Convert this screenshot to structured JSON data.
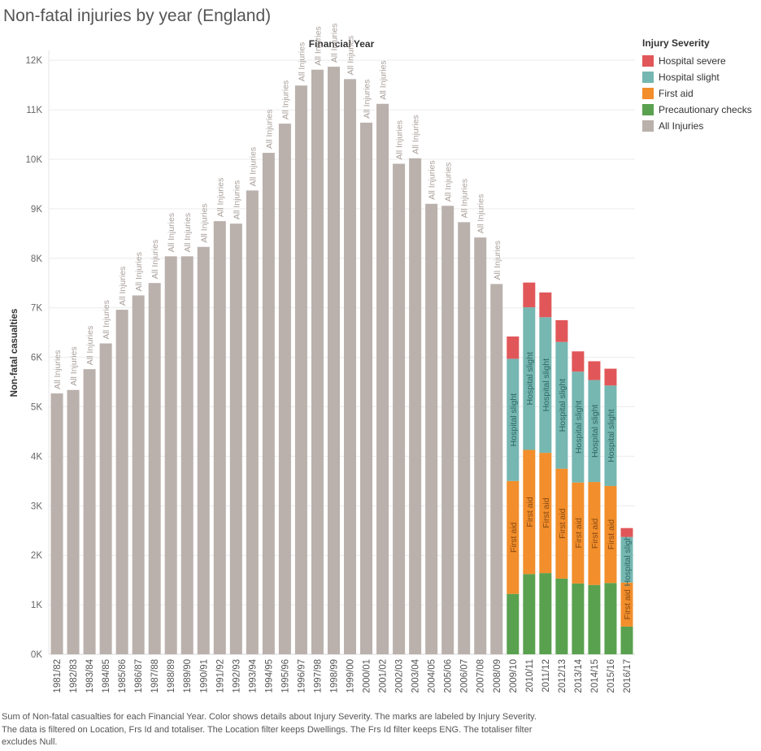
{
  "title": "Non-fatal injuries by year (England)",
  "column_header": "Financial Year",
  "legend": {
    "title": "Injury Severity",
    "items": [
      {
        "label": "Hospital severe",
        "color": "#e15759"
      },
      {
        "label": "Hospital slight",
        "color": "#76b7b2"
      },
      {
        "label": "First aid",
        "color": "#f28e2b"
      },
      {
        "label": "Precautionary checks",
        "color": "#59a14f"
      },
      {
        "label": "All Injuries",
        "color": "#bab0ac"
      }
    ]
  },
  "caption": {
    "line1": "Sum of Non-fatal casualties for each Financial Year.  Color shows details about Injury Severity.  The marks are labeled by Injury Severity.",
    "line2": "The data is filtered on Location, Frs Id and totaliser. The Location filter keeps Dwellings. The Frs Id filter keeps ENG. The totaliser filter",
    "line3": "excludes Null."
  },
  "chart_data": {
    "type": "bar",
    "stacked": true,
    "ylabel": "Non-fatal casualties",
    "xlabel": "Financial Year",
    "ylim": [
      0,
      12200
    ],
    "yticks": [
      "0K",
      "1K",
      "2K",
      "3K",
      "4K",
      "5K",
      "6K",
      "7K",
      "8K",
      "9K",
      "10K",
      "11K",
      "12K"
    ],
    "grid": "horizontal",
    "legend_position": "right",
    "categories": [
      "1981/82",
      "1982/83",
      "1983/84",
      "1984/85",
      "1985/86",
      "1986/87",
      "1987/88",
      "1988/89",
      "1989/90",
      "1990/91",
      "1991/92",
      "1992/93",
      "1993/94",
      "1994/95",
      "1995/96",
      "1996/97",
      "1997/98",
      "1998/99",
      "1999/00",
      "2000/01",
      "2001/02",
      "2002/03",
      "2003/04",
      "2004/05",
      "2005/06",
      "2006/07",
      "2007/08",
      "2008/09",
      "2009/10",
      "2010/11",
      "2011/12",
      "2012/13",
      "2013/14",
      "2014/15",
      "2015/16",
      "2016/17"
    ],
    "series": [
      {
        "name": "Precautionary checks",
        "color": "#59a14f",
        "label": "",
        "values": [
          null,
          null,
          null,
          null,
          null,
          null,
          null,
          null,
          null,
          null,
          null,
          null,
          null,
          null,
          null,
          null,
          null,
          null,
          null,
          null,
          null,
          null,
          null,
          null,
          null,
          null,
          null,
          null,
          1220,
          1620,
          1640,
          1530,
          1430,
          1400,
          1440,
          560
        ]
      },
      {
        "name": "First aid",
        "color": "#f28e2b",
        "label": "First aid",
        "values": [
          null,
          null,
          null,
          null,
          null,
          null,
          null,
          null,
          null,
          null,
          null,
          null,
          null,
          null,
          null,
          null,
          null,
          null,
          null,
          null,
          null,
          null,
          null,
          null,
          null,
          null,
          null,
          null,
          2280,
          2510,
          2430,
          2220,
          2040,
          2080,
          1960,
          890
        ]
      },
      {
        "name": "Hospital slight",
        "color": "#76b7b2",
        "label": "Hospital slight",
        "values": [
          null,
          null,
          null,
          null,
          null,
          null,
          null,
          null,
          null,
          null,
          null,
          null,
          null,
          null,
          null,
          null,
          null,
          null,
          null,
          null,
          null,
          null,
          null,
          null,
          null,
          null,
          null,
          null,
          2470,
          2880,
          2740,
          2560,
          2240,
          2060,
          2030,
          920
        ]
      },
      {
        "name": "Hospital severe",
        "color": "#e15759",
        "label": "",
        "values": [
          null,
          null,
          null,
          null,
          null,
          null,
          null,
          null,
          null,
          null,
          null,
          null,
          null,
          null,
          null,
          null,
          null,
          null,
          null,
          null,
          null,
          null,
          null,
          null,
          null,
          null,
          null,
          null,
          450,
          500,
          500,
          440,
          410,
          380,
          340,
          180
        ]
      },
      {
        "name": "All Injuries",
        "color": "#bab0ac",
        "label": "All Injuries",
        "values": [
          5270,
          5340,
          5760,
          6280,
          6960,
          7250,
          7500,
          8040,
          8040,
          8230,
          8750,
          8700,
          9370,
          10130,
          10720,
          11490,
          11810,
          11870,
          11620,
          10740,
          11120,
          9910,
          10020,
          9100,
          9060,
          8730,
          8420,
          7480,
          null,
          null,
          null,
          null,
          null,
          null,
          null,
          null
        ]
      }
    ]
  }
}
